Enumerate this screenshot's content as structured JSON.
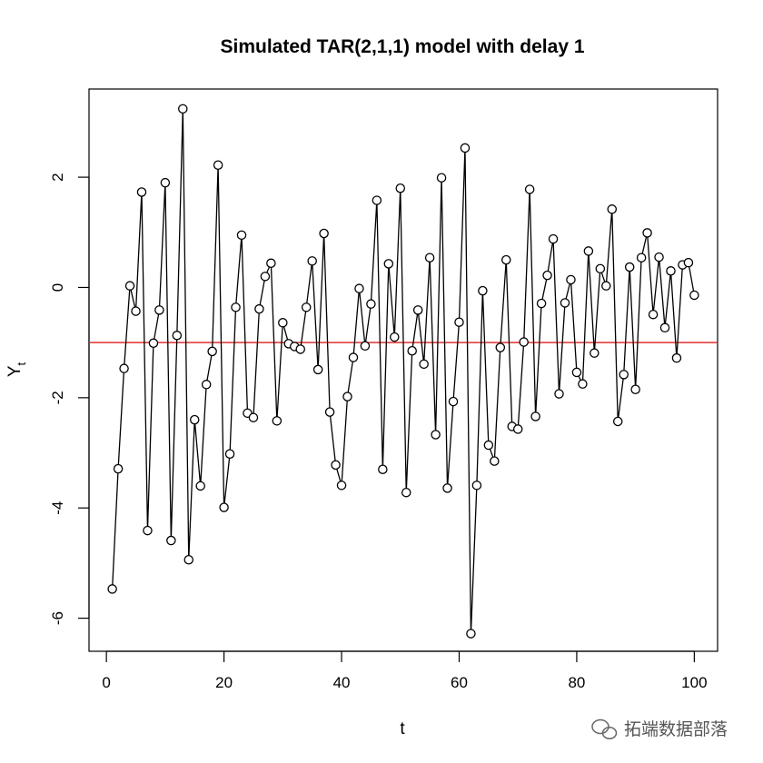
{
  "chart_data": {
    "type": "line",
    "title": "Simulated TAR(2,1,1) model with delay 1",
    "xlabel": "t",
    "ylabel_main": "Y",
    "ylabel_sub": "t",
    "xlim": [
      -2.96,
      103.96
    ],
    "ylim": [
      -6.6,
      3.6
    ],
    "xticks": [
      0,
      20,
      40,
      60,
      80,
      100
    ],
    "yticks": [
      -6,
      -4,
      -2,
      0,
      2
    ],
    "xtick_labels": [
      "0",
      "20",
      "40",
      "60",
      "80",
      "100"
    ],
    "ytick_labels": [
      "-6",
      "-4",
      "-2",
      "0",
      "2"
    ],
    "hline": {
      "y": -1.0,
      "color": "#e03030"
    },
    "marker": "open-circle",
    "series_color": "#000000",
    "x": [
      1,
      2,
      3,
      4,
      5,
      6,
      7,
      8,
      9,
      10,
      11,
      12,
      13,
      14,
      15,
      16,
      17,
      18,
      19,
      20,
      21,
      22,
      23,
      24,
      25,
      26,
      27,
      28,
      29,
      30,
      31,
      32,
      33,
      34,
      35,
      36,
      37,
      38,
      39,
      40,
      41,
      42,
      43,
      44,
      45,
      46,
      47,
      48,
      49,
      50,
      51,
      52,
      53,
      54,
      55,
      56,
      57,
      58,
      59,
      60,
      61,
      62,
      63,
      64,
      65,
      66,
      67,
      68,
      69,
      70,
      71,
      72,
      73,
      74,
      75,
      76,
      77,
      78,
      79,
      80,
      81,
      82,
      83,
      84,
      85,
      86,
      87,
      88,
      89,
      90,
      91,
      92,
      93,
      94,
      95,
      96,
      97,
      98,
      99,
      100
    ],
    "y": [
      -5.47,
      -3.29,
      -1.47,
      0.03,
      -0.43,
      1.73,
      -4.41,
      -1.01,
      -0.41,
      1.9,
      -4.59,
      -0.87,
      3.24,
      -4.94,
      -2.4,
      -3.6,
      -1.76,
      -1.16,
      2.22,
      -3.99,
      -3.02,
      -0.36,
      0.95,
      -2.28,
      -2.36,
      -0.39,
      0.2,
      0.44,
      -2.42,
      -0.64,
      -1.02,
      -1.07,
      -1.12,
      -0.36,
      0.48,
      -1.49,
      0.98,
      -2.26,
      -3.22,
      -3.59,
      -1.98,
      -1.27,
      -0.02,
      -1.06,
      -0.3,
      1.58,
      -3.3,
      0.43,
      -0.9,
      1.8,
      -3.72,
      -1.15,
      -0.41,
      -1.39,
      0.54,
      -2.67,
      1.99,
      -3.64,
      -2.07,
      -0.63,
      2.53,
      -6.28,
      -3.59,
      -0.06,
      -2.86,
      -3.15,
      -1.09,
      0.5,
      -2.52,
      -2.57,
      -0.99,
      1.78,
      -2.34,
      -0.29,
      0.22,
      0.88,
      -1.93,
      -0.28,
      0.14,
      -1.54,
      -1.75,
      0.66,
      -1.19,
      0.34,
      0.03,
      1.42,
      -2.43,
      -1.58,
      0.37,
      -1.85,
      0.54,
      0.99,
      -0.49,
      0.55,
      -0.73,
      0.3,
      -1.28,
      0.41,
      0.45,
      -0.14
    ]
  },
  "watermark": {
    "text": "拓端数据部落",
    "icon": "wechat-icon"
  }
}
